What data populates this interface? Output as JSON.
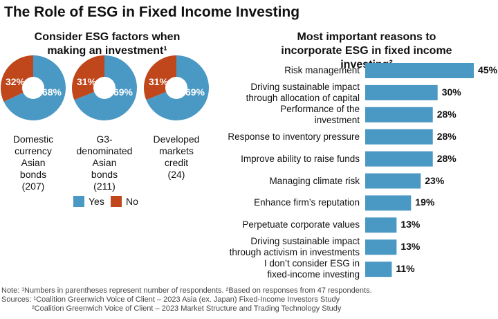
{
  "title": "The Role of ESG in Fixed Income Investing",
  "colors": {
    "yes": "#4a98c4",
    "no": "#c0461b"
  },
  "chart_data": [
    {
      "type": "pie",
      "title": "Consider ESG factors when making an investment¹",
      "legend": [
        "Yes",
        "No"
      ],
      "legend_placement": "bottom",
      "pies": [
        {
          "label": "Domestic currency Asian bonds (207)",
          "label_lines": [
            "Domestic",
            "currency",
            "Asian",
            "bonds",
            "(207)"
          ],
          "yes": 68,
          "no": 32
        },
        {
          "label": "G3-denominated Asian bonds (211)",
          "label_lines": [
            "G3-",
            "denominated",
            "Asian",
            "bonds",
            "(211)"
          ],
          "yes": 69,
          "no": 31
        },
        {
          "label": "Developed markets credit (24)",
          "label_lines": [
            "Developed",
            "markets",
            "credit",
            "(24)"
          ],
          "yes": 69,
          "no": 31
        }
      ]
    },
    {
      "type": "bar",
      "orientation": "horizontal",
      "title": "Most important reasons to incorporate ESG in fixed income investing²",
      "categories": [
        "Risk management",
        "Driving sustainable impact through allocation of capital",
        "Performance of the investment",
        "Response to inventory pressure",
        "Improve ability to raise funds",
        "Managing climate risk",
        "Enhance firm’s reputation",
        "Perpetuate corporate values",
        "Driving sustainable impact through activism in investments",
        "I don’t consider ESG in fixed-income investing"
      ],
      "category_lines": [
        [
          "Risk management"
        ],
        [
          "Driving sustainable impact",
          "through allocation of capital"
        ],
        [
          "Performance of the",
          "investment"
        ],
        [
          "Response to inventory pressure"
        ],
        [
          "Improve ability to raise funds"
        ],
        [
          "Managing climate risk"
        ],
        [
          "Enhance firm’s reputation"
        ],
        [
          "Perpetuate corporate values"
        ],
        [
          "Driving sustainable impact",
          "through activism in investments"
        ],
        [
          "I don’t consider ESG in",
          "fixed-income investing"
        ]
      ],
      "values": [
        45,
        30,
        28,
        28,
        28,
        23,
        19,
        13,
        13,
        11
      ],
      "unit": "%"
    }
  ],
  "notes": {
    "note": "Note: ¹Numbers in parentheses represent number of respondents. ²Based on responses from 47 respondents.",
    "sources": "Sources: ¹Coalition Greenwich Voice of Client – 2023 Asia (ex. Japan) Fixed-Income Investors Study",
    "sources2": "²Coalition Greenwich Voice of Client – 2023 Market Structure and Trading Technology Study"
  }
}
